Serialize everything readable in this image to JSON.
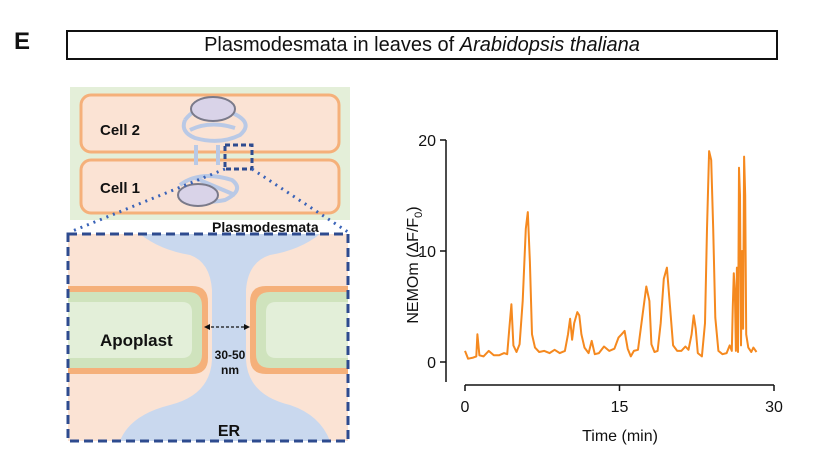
{
  "panel": {
    "letter": "E",
    "title_prefix": "Plasmodesmata in leaves of ",
    "title_italic": "Arabidopsis thaliana"
  },
  "diagram": {
    "cell2_label": "Cell 2",
    "cell1_label": "Cell 1",
    "plasmodesmata_label": "Plasmodesmata",
    "apoplast_label": "Apoplast",
    "gap_label_line1": "30-50",
    "gap_label_line2": "nm",
    "er_label": "ER",
    "colors": {
      "cell_fill": "#fbe3d4",
      "cell_wall_green": "#d7e8c8",
      "cell_membrane": "#f5b07a",
      "er": "#c9d8ee",
      "callout": "#2e4b8f"
    }
  },
  "chart_data": {
    "type": "line",
    "title": "",
    "xlabel": "Time (min)",
    "ylabel_prefix": "NEMOm (",
    "ylabel_mid": "ΔF/F",
    "ylabel_sub": "0",
    "ylabel_suffix": ")",
    "xlim": [
      0,
      30
    ],
    "ylim": [
      -1,
      21
    ],
    "x_ticks": [
      0,
      15,
      30
    ],
    "x_tick_labels": [
      "0",
      "15",
      "30"
    ],
    "y_ticks": [
      0,
      10,
      20
    ],
    "y_tick_labels": [
      "0",
      "10",
      "20"
    ],
    "color": "#f5891f",
    "x": [
      0.0,
      0.3,
      0.8,
      1.1,
      1.2,
      1.4,
      1.8,
      2.3,
      2.8,
      3.3,
      3.8,
      4.1,
      4.3,
      4.5,
      4.7,
      5.0,
      5.3,
      5.6,
      5.9,
      6.1,
      6.3,
      6.5,
      6.8,
      7.2,
      7.7,
      8.2,
      8.7,
      9.2,
      9.7,
      10.0,
      10.2,
      10.4,
      10.6,
      10.9,
      11.1,
      11.3,
      11.6,
      12.0,
      12.3,
      12.6,
      13.0,
      13.5,
      14.0,
      14.5,
      14.9,
      15.2,
      15.5,
      15.8,
      16.1,
      16.4,
      16.8,
      17.2,
      17.6,
      17.9,
      18.1,
      18.4,
      18.7,
      19.0,
      19.3,
      19.6,
      19.9,
      20.2,
      20.6,
      21.0,
      21.4,
      21.7,
      22.0,
      22.2,
      22.4,
      22.6,
      23.0,
      23.3,
      23.5,
      23.7,
      23.9,
      24.1,
      24.3,
      24.6,
      25.0,
      25.4,
      25.7,
      25.9,
      26.0,
      26.1,
      26.2,
      26.3,
      26.4,
      26.5,
      26.6,
      26.7,
      26.8,
      26.9,
      27.0,
      27.1,
      27.2,
      27.3,
      27.5,
      27.8,
      28.0,
      28.3
    ],
    "y": [
      1.0,
      0.3,
      0.4,
      0.5,
      2.5,
      0.6,
      0.5,
      1.0,
      0.6,
      0.6,
      0.8,
      0.7,
      3.0,
      5.2,
      1.5,
      0.9,
      1.6,
      5.5,
      12.0,
      13.5,
      9.0,
      2.5,
      1.3,
      0.9,
      1.0,
      0.8,
      1.1,
      0.8,
      1.0,
      2.5,
      3.9,
      2.0,
      3.5,
      4.5,
      4.2,
      2.5,
      1.3,
      0.8,
      1.9,
      0.7,
      0.8,
      1.4,
      1.0,
      1.2,
      2.2,
      2.5,
      2.8,
      1.2,
      0.5,
      1.0,
      1.1,
      4.0,
      6.8,
      5.5,
      1.6,
      0.9,
      1.0,
      3.5,
      7.5,
      8.5,
      5.0,
      1.5,
      1.0,
      1.0,
      1.4,
      1.1,
      2.5,
      4.2,
      3.0,
      0.8,
      0.5,
      3.5,
      12.0,
      19.0,
      18.2,
      12.0,
      4.0,
      1.0,
      0.7,
      0.8,
      1.5,
      1.0,
      5.0,
      8.0,
      6.2,
      1.0,
      8.5,
      0.9,
      17.5,
      15.0,
      1.5,
      10.0,
      3.0,
      18.5,
      15.0,
      2.5,
      1.3,
      0.9,
      1.3,
      0.9
    ]
  }
}
